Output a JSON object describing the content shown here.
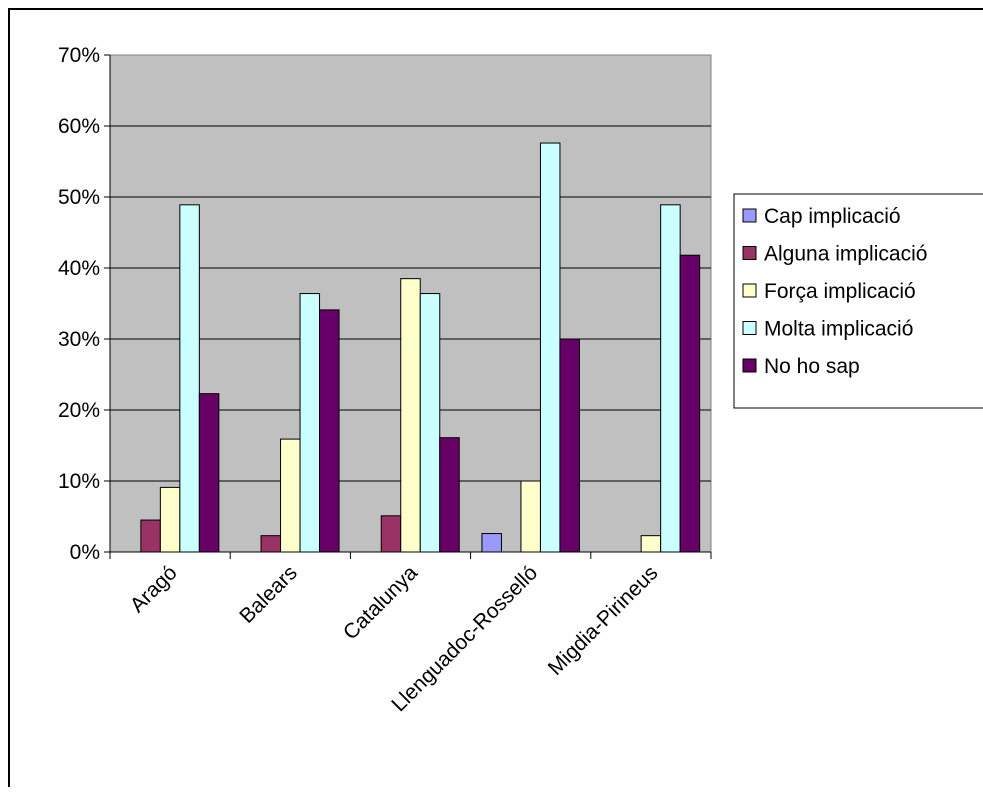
{
  "chart_data": {
    "type": "bar",
    "categories": [
      "Aragó",
      "Balears",
      "Catalunya",
      "Llenguadoc-Rosselló",
      "Migdia-Pirineus"
    ],
    "series": [
      {
        "name": "Cap implicació",
        "color": "#9999ff",
        "values": [
          0,
          0,
          0,
          2.6,
          0
        ]
      },
      {
        "name": "Alguna implicació",
        "color": "#993366",
        "values": [
          4.5,
          2.3,
          5.1,
          0,
          0
        ]
      },
      {
        "name": "Força implicació",
        "color": "#ffffcc",
        "values": [
          9.1,
          15.9,
          38.5,
          10.0,
          2.3
        ]
      },
      {
        "name": "Molta implicació",
        "color": "#ccffff",
        "values": [
          48.9,
          36.4,
          36.4,
          57.6,
          48.9
        ]
      },
      {
        "name": "No ho sap",
        "color": "#660066",
        "values": [
          22.3,
          34.1,
          16.1,
          30.0,
          41.8
        ]
      }
    ],
    "ylim": [
      0,
      70
    ],
    "yticks": [
      "0%",
      "10%",
      "20%",
      "30%",
      "40%",
      "50%",
      "60%",
      "70%"
    ],
    "title": "",
    "xlabel": "",
    "ylabel": "",
    "grid": true,
    "plot_background": "#c0c0c0",
    "legend_position": "right"
  }
}
